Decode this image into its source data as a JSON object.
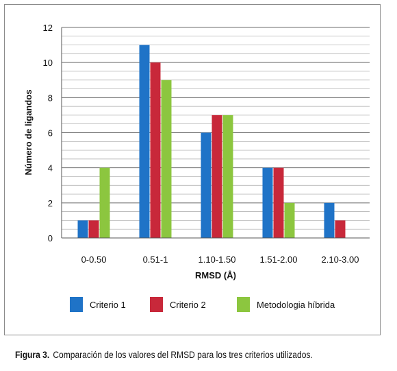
{
  "chart_data": {
    "type": "bar",
    "categories": [
      "0-0.50",
      "0.51-1",
      "1.10-1.50",
      "1.51-2.00",
      "2.10-3.00"
    ],
    "series": [
      {
        "name": "Criterio 1",
        "values": [
          1,
          11,
          6,
          4,
          2
        ],
        "color": "#1f73c7"
      },
      {
        "name": "Criterio 2",
        "values": [
          1,
          10,
          7,
          4,
          1
        ],
        "color": "#c8283a"
      },
      {
        "name": "Metodologia híbrida",
        "values": [
          4,
          9,
          7,
          2,
          0
        ],
        "color": "#8cc63f"
      }
    ],
    "xlabel": "RMSD (Å)",
    "ylabel": "Número de ligandos",
    "ylim": [
      0,
      12
    ],
    "yticks": [
      0,
      2,
      4,
      6,
      8,
      10,
      12
    ],
    "grid": true,
    "legend_position": "bottom"
  },
  "caption": {
    "label": "Figura 3.",
    "text": "Comparación de los valores del RMSD para los tres criterios utilizados."
  }
}
